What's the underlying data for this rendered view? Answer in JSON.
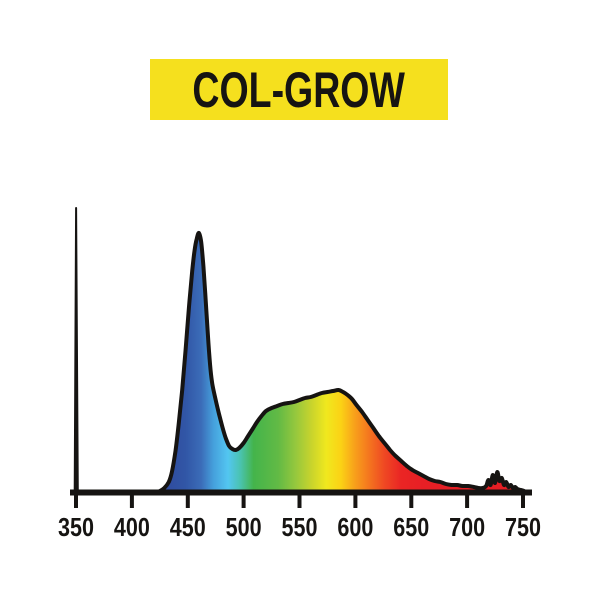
{
  "page": {
    "background": "#FFFFFF"
  },
  "banner": {
    "label": "COL-GROW",
    "bg_color": "#F5E01E",
    "text_color": "#161412"
  },
  "chart_data": {
    "type": "area",
    "title": "COL-GROW",
    "xlabel": "",
    "ylabel": "",
    "x_ticks": [
      350,
      400,
      450,
      500,
      550,
      600,
      650,
      700,
      750
    ],
    "x_range": [
      350,
      755
    ],
    "y_range_relative": [
      0,
      300
    ],
    "grid": false,
    "legend": false,
    "axis_color": "#161412",
    "outline_color": "#161412",
    "tick_label_color": "#161412",
    "series": [
      {
        "name": "uv-spike-350nm",
        "type": "spike",
        "color": "#161412",
        "points": [
          [
            348.8,
            0
          ],
          [
            350.1,
            285
          ],
          [
            351.6,
            0
          ]
        ]
      },
      {
        "name": "spectral-power-distribution",
        "type": "area-gradient",
        "points": [
          [
            420,
            0
          ],
          [
            425,
            2
          ],
          [
            429,
            5
          ],
          [
            433,
            11
          ],
          [
            436,
            22
          ],
          [
            439,
            42
          ],
          [
            442,
            70
          ],
          [
            445,
            103
          ],
          [
            448,
            142
          ],
          [
            451,
            185
          ],
          [
            454,
            222
          ],
          [
            456,
            242
          ],
          [
            458,
            254
          ],
          [
            460,
            260
          ],
          [
            462,
            251
          ],
          [
            464,
            227
          ],
          [
            466,
            194
          ],
          [
            468,
            158
          ],
          [
            470,
            128
          ],
          [
            472,
            109
          ],
          [
            475,
            93
          ],
          [
            478,
            79
          ],
          [
            481,
            66
          ],
          [
            484,
            55
          ],
          [
            487,
            47
          ],
          [
            490,
            44
          ],
          [
            493,
            43
          ],
          [
            496,
            45
          ],
          [
            500,
            50
          ],
          [
            504,
            57
          ],
          [
            508,
            64
          ],
          [
            512,
            71
          ],
          [
            516,
            77
          ],
          [
            520,
            82
          ],
          [
            525,
            85
          ],
          [
            530,
            87
          ],
          [
            535,
            89
          ],
          [
            540,
            90
          ],
          [
            545,
            91
          ],
          [
            550,
            93
          ],
          [
            555,
            95
          ],
          [
            560,
            96
          ],
          [
            565,
            98
          ],
          [
            570,
            100
          ],
          [
            575,
            101
          ],
          [
            580,
            102
          ],
          [
            585,
            103
          ],
          [
            589,
            101
          ],
          [
            593,
            98
          ],
          [
            597,
            94
          ],
          [
            601,
            88
          ],
          [
            606,
            81
          ],
          [
            611,
            73
          ],
          [
            616,
            65
          ],
          [
            621,
            57
          ],
          [
            626,
            50
          ],
          [
            631,
            43
          ],
          [
            636,
            37
          ],
          [
            641,
            32
          ],
          [
            646,
            27
          ],
          [
            651,
            23
          ],
          [
            656,
            20
          ],
          [
            661,
            17
          ],
          [
            666,
            14
          ],
          [
            671,
            12
          ],
          [
            676,
            11
          ],
          [
            681,
            9
          ],
          [
            686,
            8
          ],
          [
            691,
            8
          ],
          [
            696,
            7
          ],
          [
            701,
            7
          ],
          [
            706,
            6
          ],
          [
            710,
            5
          ],
          [
            714,
            5
          ],
          [
            717,
            7
          ],
          [
            719,
            13
          ],
          [
            721,
            8
          ],
          [
            723,
            18
          ],
          [
            725,
            10
          ],
          [
            727,
            21
          ],
          [
            729,
            12
          ],
          [
            731,
            15
          ],
          [
            733,
            8
          ],
          [
            735,
            11
          ],
          [
            737,
            6
          ],
          [
            739,
            8
          ],
          [
            741,
            5
          ],
          [
            743,
            6
          ],
          [
            745,
            4
          ],
          [
            748,
            3
          ],
          [
            751,
            2
          ],
          [
            753,
            0
          ]
        ]
      }
    ],
    "gradient_stops": [
      [
        420,
        "#2F459A"
      ],
      [
        448,
        "#3156A6"
      ],
      [
        462,
        "#3B6CB8"
      ],
      [
        473,
        "#45A0DC"
      ],
      [
        486,
        "#53C6F1"
      ],
      [
        497,
        "#4AC3B0"
      ],
      [
        509,
        "#44B44B"
      ],
      [
        531,
        "#62BA45"
      ],
      [
        547,
        "#97C83D"
      ],
      [
        561,
        "#C9D42C"
      ],
      [
        574,
        "#F0E81E"
      ],
      [
        587,
        "#FBD215"
      ],
      [
        600,
        "#F89E1B"
      ],
      [
        613,
        "#F4731F"
      ],
      [
        626,
        "#EF4823"
      ],
      [
        641,
        "#EA2524"
      ],
      [
        660,
        "#E71F25"
      ],
      [
        750,
        "#E51E24"
      ]
    ]
  }
}
